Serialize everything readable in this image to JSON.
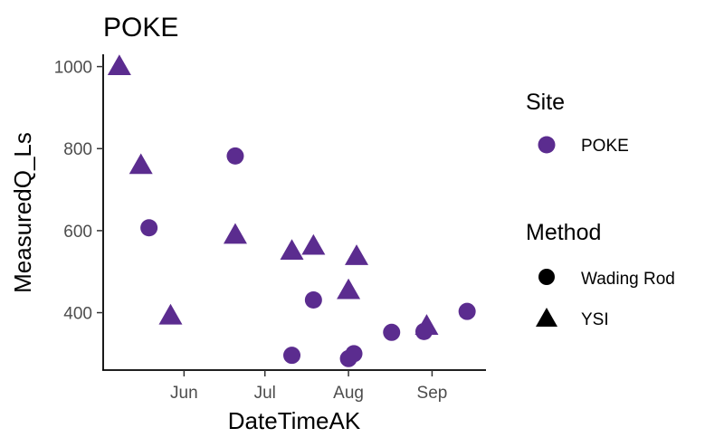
{
  "chart_data": {
    "type": "scatter",
    "title": "POKE",
    "xlabel": "DateTimeAK",
    "ylabel": "MeasuredQ_Ls",
    "x_ticks": [
      {
        "label": "Jun",
        "date": "2023-06-01"
      },
      {
        "label": "Jul",
        "date": "2023-07-01"
      },
      {
        "label": "Aug",
        "date": "2023-08-01"
      },
      {
        "label": "Sep",
        "date": "2023-09-01"
      }
    ],
    "xlim": [
      "2023-05-02",
      "2023-09-21"
    ],
    "y_ticks": [
      400,
      600,
      800,
      1000
    ],
    "ylim": [
      260,
      1030
    ],
    "grid": false,
    "color": "#5b2c8f",
    "legend": {
      "placement": "right",
      "site": {
        "title": "Site",
        "entries": [
          "POKE"
        ]
      },
      "method": {
        "title": "Method",
        "entries": [
          "Wading Rod",
          "YSI"
        ]
      }
    },
    "series": [
      {
        "name": "Wading Rod",
        "shape": "circle",
        "points": [
          {
            "x": "2023-05-19",
            "y": 607
          },
          {
            "x": "2023-06-20",
            "y": 782
          },
          {
            "x": "2023-07-11",
            "y": 296
          },
          {
            "x": "2023-07-19",
            "y": 431
          },
          {
            "x": "2023-08-01",
            "y": 288
          },
          {
            "x": "2023-08-03",
            "y": 300
          },
          {
            "x": "2023-08-17",
            "y": 352
          },
          {
            "x": "2023-08-29",
            "y": 354
          },
          {
            "x": "2023-09-14",
            "y": 403
          }
        ]
      },
      {
        "name": "YSI",
        "shape": "triangle",
        "points": [
          {
            "x": "2023-05-08",
            "y": 1003
          },
          {
            "x": "2023-05-16",
            "y": 762
          },
          {
            "x": "2023-05-27",
            "y": 395
          },
          {
            "x": "2023-06-20",
            "y": 592
          },
          {
            "x": "2023-07-11",
            "y": 553
          },
          {
            "x": "2023-07-19",
            "y": 565
          },
          {
            "x": "2023-08-01",
            "y": 457
          },
          {
            "x": "2023-08-04",
            "y": 540
          },
          {
            "x": "2023-08-30",
            "y": 370
          }
        ]
      }
    ]
  }
}
